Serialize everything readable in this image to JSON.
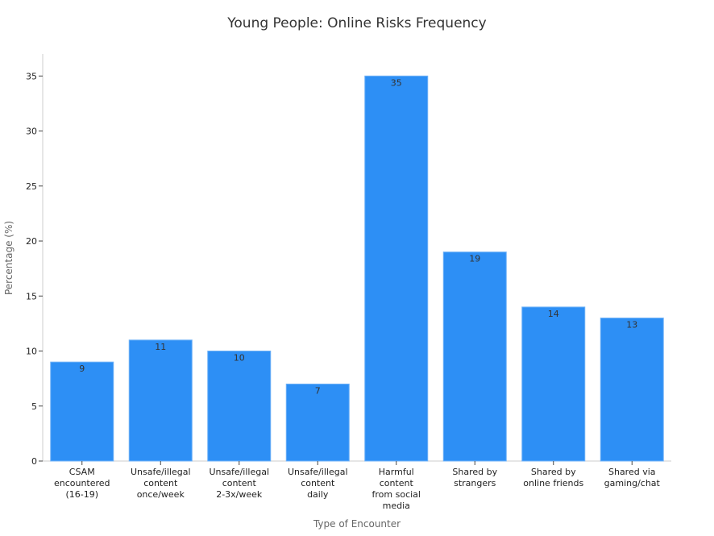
{
  "chart_data": {
    "type": "bar",
    "title": "Young People: Online Risks Frequency",
    "xlabel": "Type of Encounter",
    "ylabel": "Percentage (%)",
    "ylim": [
      0,
      37
    ],
    "yticks": [
      0,
      5,
      10,
      15,
      20,
      25,
      30,
      35
    ],
    "categories": [
      "CSAM encountered (16-19)",
      "Unsafe/illegal content once/week",
      "Unsafe/illegal content 2-3x/week",
      "Unsafe/illegal content daily",
      "Harmful content from social media",
      "Shared by strangers",
      "Shared by online friends",
      "Shared via gaming/chat"
    ],
    "category_lines": [
      [
        "CSAM",
        "encountered",
        "(16-19)"
      ],
      [
        "Unsafe/illegal",
        "content",
        "once/week"
      ],
      [
        "Unsafe/illegal",
        "content",
        "2-3x/week"
      ],
      [
        "Unsafe/illegal",
        "content",
        "daily"
      ],
      [
        "Harmful",
        "content",
        "from social",
        "media"
      ],
      [
        "Shared by",
        "strangers"
      ],
      [
        "Shared by",
        "online friends"
      ],
      [
        "Shared via",
        "gaming/chat"
      ]
    ],
    "values": [
      9,
      11,
      10,
      7,
      35,
      19,
      14,
      13
    ],
    "colors": {
      "bar": "#2d8ff5"
    },
    "grid": false,
    "legend": "none"
  }
}
